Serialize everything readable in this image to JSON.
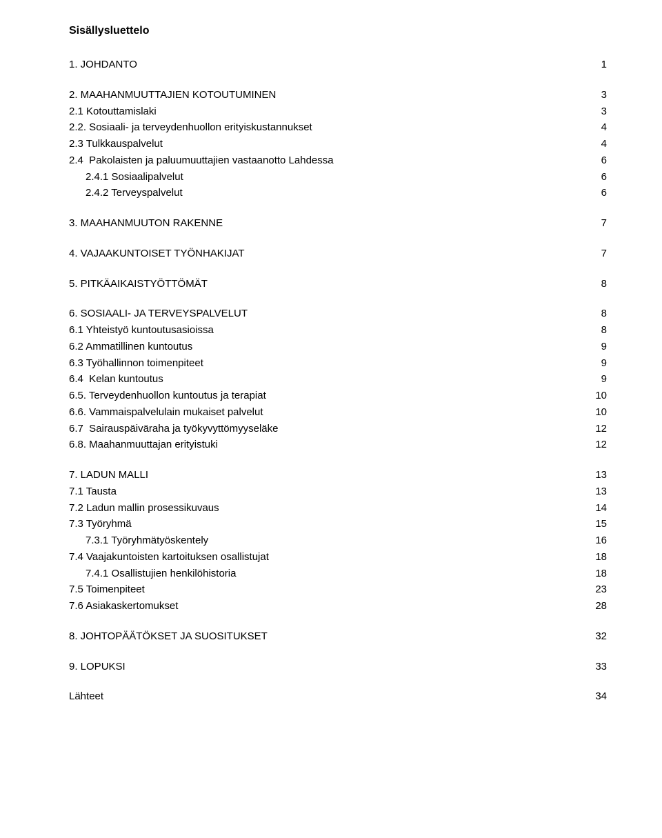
{
  "document": {
    "title": "Sisällysluettelo",
    "background_color": "#ffffff",
    "text_color": "#000000",
    "title_fontsize": 16,
    "entry_fontsize": 15,
    "sections": [
      {
        "lines": [
          {
            "label": "1. JOHDANTO",
            "page": "1",
            "indent": 0
          }
        ]
      },
      {
        "lines": [
          {
            "label": "2. MAAHANMUUTTAJIEN KOTOUTUMINEN",
            "page": "3",
            "indent": 0
          },
          {
            "label": "2.1 Kotouttamislaki",
            "page": "3",
            "indent": 0
          },
          {
            "label": "2.2. Sosiaali- ja terveydenhuollon erityiskustannukset",
            "page": "4",
            "indent": 0
          },
          {
            "label": "2.3 Tulkkauspalvelut",
            "page": "4",
            "indent": 0
          },
          {
            "label": "2.4  Pakolaisten ja paluumuuttajien vastaanotto Lahdessa",
            "page": "6",
            "indent": 0
          },
          {
            "label": "2.4.1 Sosiaalipalvelut",
            "page": "6",
            "indent": 1
          },
          {
            "label": "2.4.2 Terveyspalvelut",
            "page": "6",
            "indent": 1
          }
        ]
      },
      {
        "lines": [
          {
            "label": "3. MAAHANMUUTON RAKENNE",
            "page": "7",
            "indent": 0
          }
        ]
      },
      {
        "lines": [
          {
            "label": "4. VAJAAKUNTOISET TYÖNHAKIJAT",
            "page": "7",
            "indent": 0
          }
        ]
      },
      {
        "lines": [
          {
            "label": "5. PITKÄAIKAISTYÖTTÖMÄT",
            "page": "8",
            "indent": 0
          }
        ]
      },
      {
        "lines": [
          {
            "label": "6. SOSIAALI- JA TERVEYSPALVELUT",
            "page": "8",
            "indent": 0
          },
          {
            "label": "6.1 Yhteistyö kuntoutusasioissa",
            "page": "8",
            "indent": 0
          },
          {
            "label": "6.2 Ammatillinen kuntoutus",
            "page": "9",
            "indent": 0
          },
          {
            "label": "6.3 Työhallinnon toimenpiteet",
            "page": "9",
            "indent": 0
          },
          {
            "label": "6.4  Kelan kuntoutus",
            "page": "9",
            "indent": 0
          },
          {
            "label": "6.5. Terveydenhuollon kuntoutus ja terapiat",
            "page": "10",
            "indent": 0
          },
          {
            "label": "6.6. Vammaispalvelulain mukaiset palvelut",
            "page": "10",
            "indent": 0
          },
          {
            "label": "6.7  Sairauspäiväraha ja työkyvyttömyyseläke",
            "page": "12",
            "indent": 0
          },
          {
            "label": "6.8. Maahanmuuttajan erityistuki",
            "page": "12",
            "indent": 0
          }
        ]
      },
      {
        "lines": [
          {
            "label": "7. LADUN MALLI",
            "page": "13",
            "indent": 0
          },
          {
            "label": "7.1 Tausta",
            "page": "13",
            "indent": 0
          },
          {
            "label": "7.2 Ladun mallin prosessikuvaus",
            "page": "14",
            "indent": 0
          },
          {
            "label": "7.3 Työryhmä",
            "page": "15",
            "indent": 0
          },
          {
            "label": "7.3.1 Työryhmätyöskentely",
            "page": "16",
            "indent": 1
          },
          {
            "label": "7.4 Vaajakuntoisten kartoituksen osallistujat",
            "page": "18",
            "indent": 0
          },
          {
            "label": "7.4.1 Osallistujien henkilöhistoria",
            "page": "18",
            "indent": 1
          },
          {
            "label": "7.5 Toimenpiteet",
            "page": "23",
            "indent": 0
          },
          {
            "label": "7.6 Asiakaskertomukset",
            "page": "28",
            "indent": 0
          }
        ]
      },
      {
        "lines": [
          {
            "label": "8. JOHTOPÄÄTÖKSET JA SUOSITUKSET",
            "page": "32",
            "indent": 0
          }
        ]
      },
      {
        "lines": [
          {
            "label": "9. LOPUKSI",
            "page": "33",
            "indent": 0
          }
        ]
      },
      {
        "lines": [
          {
            "label": "Lähteet",
            "page": "34",
            "indent": 0
          }
        ]
      }
    ]
  }
}
